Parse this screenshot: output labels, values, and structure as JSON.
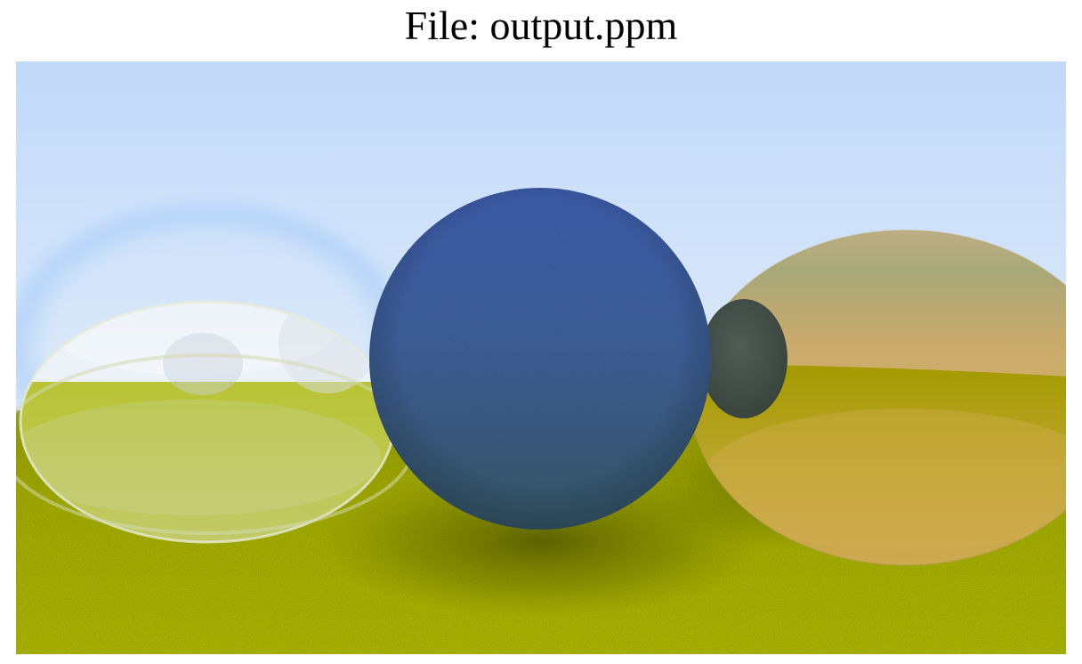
{
  "viewer": {
    "title": "File: output.ppm"
  },
  "image": {
    "description_name": "ray-traced-render",
    "colors": {
      "sky_top": "#c3dafa",
      "sky_bottom": "#eef4fc",
      "ground_light": "#b8c400",
      "ground_dark": "#6e7400",
      "blue_sphere": "#3f5eae",
      "blue_sphere_dark": "#3b5a6c",
      "gold_sphere": "#b8a878",
      "gold_sphere_lower": "#c8aa60",
      "small_sphere": "#48554e",
      "glass_sphere": "#e6eef6"
    }
  }
}
